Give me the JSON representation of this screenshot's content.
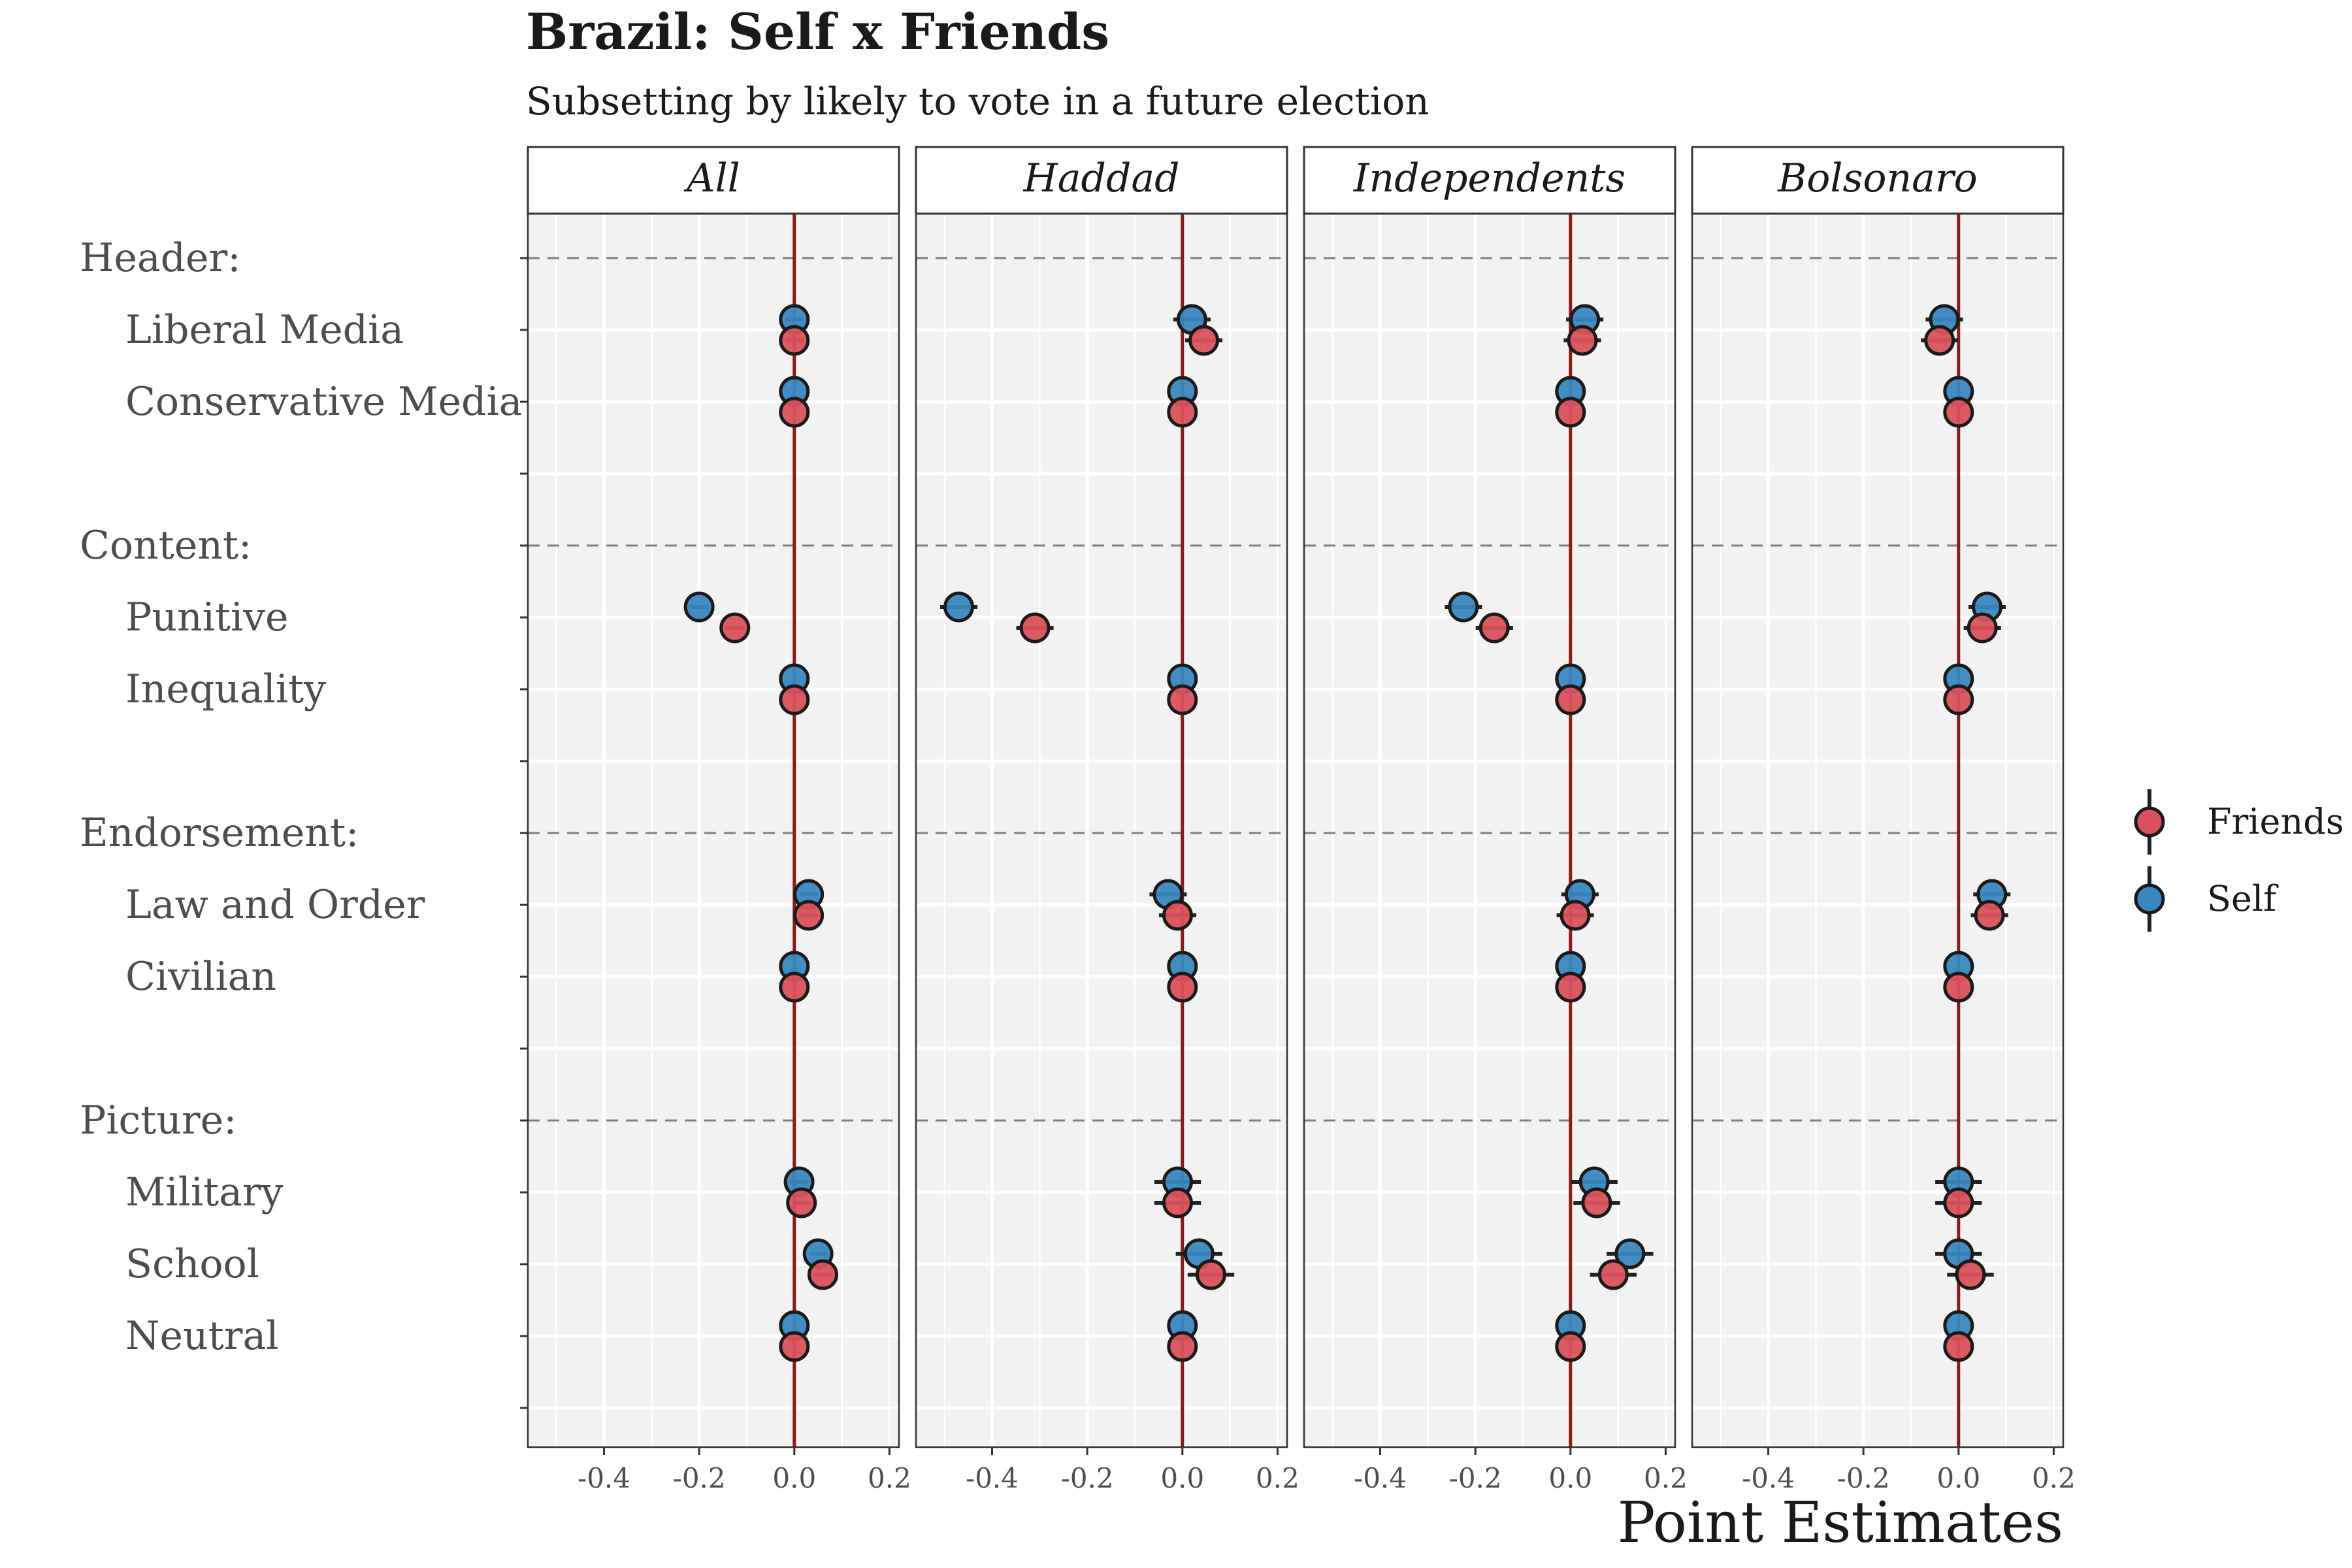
{
  "chart_data": {
    "type": "scatter",
    "title": "Brazil: Self x Friends",
    "subtitle": "Subsetting by likely to vote in a future election",
    "xlabel": "Point Estimates",
    "xlim": [
      -0.56,
      0.22
    ],
    "x_ticks": [
      "-0.4",
      "-0.2",
      "0.0",
      "0.2"
    ],
    "x_tick_values": [
      -0.4,
      -0.2,
      0.0,
      0.2
    ],
    "reference_line_x": 0,
    "reference_line_color": "#8B1A1A",
    "panels": [
      "All",
      "Haddad",
      "Independents",
      "Bolsonaro"
    ],
    "rows": [
      {
        "label": "Header:",
        "type": "group"
      },
      {
        "label": "Liberal Media",
        "type": "item"
      },
      {
        "label": "Conservative Media",
        "type": "item"
      },
      {
        "label": "",
        "type": "blank"
      },
      {
        "label": "Content:",
        "type": "group"
      },
      {
        "label": "Punitive",
        "type": "item"
      },
      {
        "label": "Inequality",
        "type": "item"
      },
      {
        "label": "",
        "type": "blank"
      },
      {
        "label": "Endorsement:",
        "type": "group"
      },
      {
        "label": "Law and Order",
        "type": "item"
      },
      {
        "label": "Civilian",
        "type": "item"
      },
      {
        "label": "",
        "type": "blank"
      },
      {
        "label": "Picture:",
        "type": "group"
      },
      {
        "label": "Military",
        "type": "item"
      },
      {
        "label": "School",
        "type": "item"
      },
      {
        "label": "Neutral",
        "type": "item"
      },
      {
        "label": "",
        "type": "blank"
      }
    ],
    "legend": {
      "position": "right",
      "entries": [
        "Friends",
        "Self"
      ]
    },
    "series": [
      {
        "name": "Self",
        "color": "#3A87C0",
        "points": [
          {
            "panel": "All",
            "row": "Liberal Media",
            "x": 0.0,
            "se": 0.01
          },
          {
            "panel": "All",
            "row": "Conservative Media",
            "x": 0.0,
            "se": 0.0
          },
          {
            "panel": "All",
            "row": "Punitive",
            "x": -0.2,
            "se": 0.01
          },
          {
            "panel": "All",
            "row": "Inequality",
            "x": 0.0,
            "se": 0.0
          },
          {
            "panel": "All",
            "row": "Law and Order",
            "x": 0.03,
            "se": 0.01
          },
          {
            "panel": "All",
            "row": "Civilian",
            "x": 0.0,
            "se": 0.0
          },
          {
            "panel": "All",
            "row": "Military",
            "x": 0.01,
            "se": 0.01
          },
          {
            "panel": "All",
            "row": "School",
            "x": 0.05,
            "se": 0.01
          },
          {
            "panel": "All",
            "row": "Neutral",
            "x": 0.0,
            "se": 0.0
          },
          {
            "panel": "Haddad",
            "row": "Liberal Media",
            "x": 0.02,
            "se": 0.02
          },
          {
            "panel": "Haddad",
            "row": "Conservative Media",
            "x": 0.0,
            "se": 0.0
          },
          {
            "panel": "Haddad",
            "row": "Punitive",
            "x": -0.47,
            "se": 0.02
          },
          {
            "panel": "Haddad",
            "row": "Inequality",
            "x": 0.0,
            "se": 0.0
          },
          {
            "panel": "Haddad",
            "row": "Law and Order",
            "x": -0.03,
            "se": 0.02
          },
          {
            "panel": "Haddad",
            "row": "Civilian",
            "x": 0.0,
            "se": 0.0
          },
          {
            "panel": "Haddad",
            "row": "Military",
            "x": -0.01,
            "se": 0.025
          },
          {
            "panel": "Haddad",
            "row": "School",
            "x": 0.035,
            "se": 0.025
          },
          {
            "panel": "Haddad",
            "row": "Neutral",
            "x": 0.0,
            "se": 0.0
          },
          {
            "panel": "Independents",
            "row": "Liberal Media",
            "x": 0.03,
            "se": 0.02
          },
          {
            "panel": "Independents",
            "row": "Conservative Media",
            "x": 0.0,
            "se": 0.0
          },
          {
            "panel": "Independents",
            "row": "Punitive",
            "x": -0.225,
            "se": 0.02
          },
          {
            "panel": "Independents",
            "row": "Inequality",
            "x": 0.0,
            "se": 0.0
          },
          {
            "panel": "Independents",
            "row": "Law and Order",
            "x": 0.02,
            "se": 0.02
          },
          {
            "panel": "Independents",
            "row": "Civilian",
            "x": 0.0,
            "se": 0.0
          },
          {
            "panel": "Independents",
            "row": "Military",
            "x": 0.05,
            "se": 0.025
          },
          {
            "panel": "Independents",
            "row": "School",
            "x": 0.125,
            "se": 0.025
          },
          {
            "panel": "Independents",
            "row": "Neutral",
            "x": 0.0,
            "se": 0.0
          },
          {
            "panel": "Bolsonaro",
            "row": "Liberal Media",
            "x": -0.03,
            "se": 0.02
          },
          {
            "panel": "Bolsonaro",
            "row": "Conservative Media",
            "x": 0.0,
            "se": 0.0
          },
          {
            "panel": "Bolsonaro",
            "row": "Punitive",
            "x": 0.06,
            "se": 0.02
          },
          {
            "panel": "Bolsonaro",
            "row": "Inequality",
            "x": 0.0,
            "se": 0.0
          },
          {
            "panel": "Bolsonaro",
            "row": "Law and Order",
            "x": 0.07,
            "se": 0.02
          },
          {
            "panel": "Bolsonaro",
            "row": "Civilian",
            "x": 0.0,
            "se": 0.0
          },
          {
            "panel": "Bolsonaro",
            "row": "Military",
            "x": 0.0,
            "se": 0.025
          },
          {
            "panel": "Bolsonaro",
            "row": "School",
            "x": 0.0,
            "se": 0.025
          },
          {
            "panel": "Bolsonaro",
            "row": "Neutral",
            "x": 0.0,
            "se": 0.0
          }
        ]
      },
      {
        "name": "Friends",
        "color": "#D9515B",
        "points": [
          {
            "panel": "All",
            "row": "Liberal Media",
            "x": 0.0,
            "se": 0.01
          },
          {
            "panel": "All",
            "row": "Conservative Media",
            "x": 0.0,
            "se": 0.0
          },
          {
            "panel": "All",
            "row": "Punitive",
            "x": -0.125,
            "se": 0.01
          },
          {
            "panel": "All",
            "row": "Inequality",
            "x": 0.0,
            "se": 0.0
          },
          {
            "panel": "All",
            "row": "Law and Order",
            "x": 0.03,
            "se": 0.01
          },
          {
            "panel": "All",
            "row": "Civilian",
            "x": 0.0,
            "se": 0.0
          },
          {
            "panel": "All",
            "row": "Military",
            "x": 0.015,
            "se": 0.01
          },
          {
            "panel": "All",
            "row": "School",
            "x": 0.06,
            "se": 0.01
          },
          {
            "panel": "All",
            "row": "Neutral",
            "x": 0.0,
            "se": 0.0
          },
          {
            "panel": "Haddad",
            "row": "Liberal Media",
            "x": 0.045,
            "se": 0.02
          },
          {
            "panel": "Haddad",
            "row": "Conservative Media",
            "x": 0.0,
            "se": 0.0
          },
          {
            "panel": "Haddad",
            "row": "Punitive",
            "x": -0.31,
            "se": 0.02
          },
          {
            "panel": "Haddad",
            "row": "Inequality",
            "x": 0.0,
            "se": 0.0
          },
          {
            "panel": "Haddad",
            "row": "Law and Order",
            "x": -0.01,
            "se": 0.02
          },
          {
            "panel": "Haddad",
            "row": "Civilian",
            "x": 0.0,
            "se": 0.0
          },
          {
            "panel": "Haddad",
            "row": "Military",
            "x": -0.01,
            "se": 0.025
          },
          {
            "panel": "Haddad",
            "row": "School",
            "x": 0.06,
            "se": 0.025
          },
          {
            "panel": "Haddad",
            "row": "Neutral",
            "x": 0.0,
            "se": 0.0
          },
          {
            "panel": "Independents",
            "row": "Liberal Media",
            "x": 0.025,
            "se": 0.02
          },
          {
            "panel": "Independents",
            "row": "Conservative Media",
            "x": 0.0,
            "se": 0.0
          },
          {
            "panel": "Independents",
            "row": "Punitive",
            "x": -0.16,
            "se": 0.02
          },
          {
            "panel": "Independents",
            "row": "Inequality",
            "x": 0.0,
            "se": 0.0
          },
          {
            "panel": "Independents",
            "row": "Law and Order",
            "x": 0.01,
            "se": 0.02
          },
          {
            "panel": "Independents",
            "row": "Civilian",
            "x": 0.0,
            "se": 0.0
          },
          {
            "panel": "Independents",
            "row": "Military",
            "x": 0.055,
            "se": 0.025
          },
          {
            "panel": "Independents",
            "row": "School",
            "x": 0.09,
            "se": 0.025
          },
          {
            "panel": "Independents",
            "row": "Neutral",
            "x": 0.0,
            "se": 0.0
          },
          {
            "panel": "Bolsonaro",
            "row": "Liberal Media",
            "x": -0.04,
            "se": 0.02
          },
          {
            "panel": "Bolsonaro",
            "row": "Conservative Media",
            "x": 0.0,
            "se": 0.0
          },
          {
            "panel": "Bolsonaro",
            "row": "Punitive",
            "x": 0.05,
            "se": 0.02
          },
          {
            "panel": "Bolsonaro",
            "row": "Inequality",
            "x": 0.0,
            "se": 0.0
          },
          {
            "panel": "Bolsonaro",
            "row": "Law and Order",
            "x": 0.065,
            "se": 0.02
          },
          {
            "panel": "Bolsonaro",
            "row": "Civilian",
            "x": 0.0,
            "se": 0.0
          },
          {
            "panel": "Bolsonaro",
            "row": "Military",
            "x": 0.0,
            "se": 0.025
          },
          {
            "panel": "Bolsonaro",
            "row": "School",
            "x": 0.025,
            "se": 0.025
          },
          {
            "panel": "Bolsonaro",
            "row": "Neutral",
            "x": 0.0,
            "se": 0.0
          }
        ]
      }
    ]
  }
}
